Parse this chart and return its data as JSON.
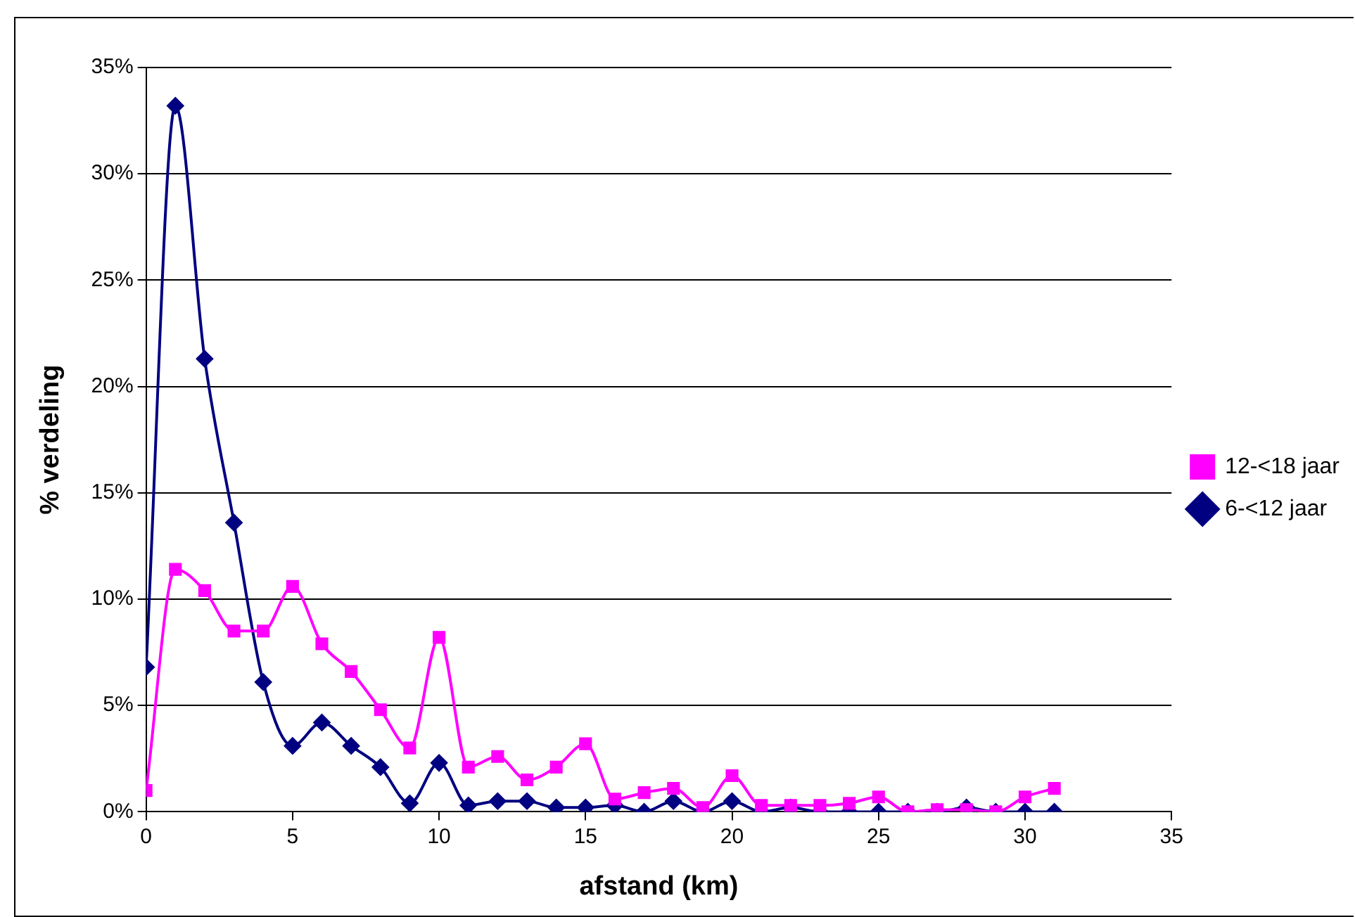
{
  "chart_data": {
    "type": "line",
    "xlabel": "afstand (km)",
    "ylabel": "% verdeling",
    "x": [
      0,
      1,
      2,
      3,
      4,
      5,
      6,
      7,
      8,
      9,
      10,
      11,
      12,
      13,
      14,
      15,
      16,
      17,
      18,
      19,
      20,
      21,
      22,
      23,
      24,
      25,
      26,
      27,
      28,
      29,
      30,
      31
    ],
    "series": [
      {
        "name": "6-<12 jaar",
        "color": "#000080",
        "marker": "diamond",
        "values": [
          6.8,
          33.2,
          21.3,
          13.6,
          6.1,
          3.1,
          4.2,
          3.1,
          2.1,
          0.4,
          2.3,
          0.3,
          0.5,
          0.5,
          0.2,
          0.2,
          0.3,
          0,
          0.5,
          0,
          0.5,
          0,
          0.2,
          0,
          0,
          0,
          0,
          0,
          0.2,
          0,
          0,
          0
        ]
      },
      {
        "name": "12-<18 jaar",
        "color": "#ff00ff",
        "marker": "square",
        "values": [
          1.0,
          11.4,
          10.4,
          8.5,
          8.5,
          10.6,
          7.9,
          6.6,
          4.8,
          3.0,
          8.2,
          2.1,
          2.6,
          1.5,
          2.1,
          3.2,
          0.6,
          0.9,
          1.1,
          0.2,
          1.7,
          0.3,
          0.3,
          0.3,
          0.4,
          0.7,
          0,
          0.1,
          0.1,
          0,
          0.7,
          1.1
        ]
      }
    ],
    "xlim": [
      0,
      35
    ],
    "xticks": [
      0,
      5,
      10,
      15,
      20,
      25,
      30,
      35
    ],
    "ylim": [
      0,
      35
    ],
    "yticks": [
      {
        "value": 0,
        "label": "0%"
      },
      {
        "value": 5,
        "label": "5%"
      },
      {
        "value": 10,
        "label": "10%"
      },
      {
        "value": 15,
        "label": "15%"
      },
      {
        "value": 20,
        "label": "20%"
      },
      {
        "value": 25,
        "label": "25%"
      },
      {
        "value": 30,
        "label": "30%"
      },
      {
        "value": 35,
        "label": "35%"
      }
    ],
    "grid": "y",
    "legend": "right",
    "line_style": "solid"
  }
}
